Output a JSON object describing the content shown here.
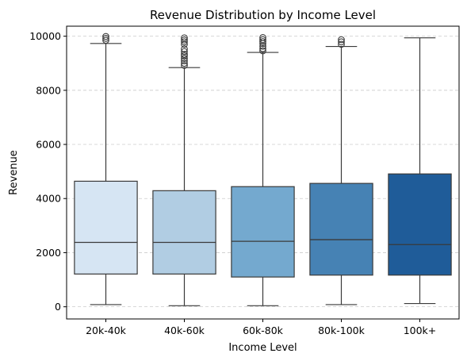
{
  "chart_data": {
    "type": "box",
    "title": "Revenue Distribution by Income Level",
    "xlabel": "Income Level",
    "ylabel": "Revenue",
    "ylim": [
      -450,
      10370
    ],
    "yticks": [
      0,
      2000,
      4000,
      6000,
      8000,
      10000
    ],
    "grid": "y-dashed",
    "legend": "none",
    "categories": [
      "20k-40k",
      "40k-60k",
      "60k-80k",
      "80k-100k",
      "100k+"
    ],
    "boxes": [
      {
        "category": "20k-40k",
        "whisker_low": 80,
        "q1": 1210,
        "median": 2380,
        "q3": 4640,
        "whisker_high": 9730,
        "outliers": [
          9850,
          9920,
          9990
        ],
        "color": "#d6e5f3"
      },
      {
        "category": "40k-60k",
        "whisker_low": 40,
        "q1": 1210,
        "median": 2380,
        "q3": 4290,
        "whisker_high": 8840,
        "outliers": [
          8920,
          9000,
          9090,
          9180,
          9270,
          9330,
          9430,
          9530,
          9700,
          9790,
          9860,
          9940
        ],
        "color": "#b1cde3"
      },
      {
        "category": "60k-80k",
        "whisker_low": 40,
        "q1": 1100,
        "median": 2420,
        "q3": 4440,
        "whisker_high": 9400,
        "outliers": [
          9460,
          9540,
          9630,
          9730,
          9800,
          9870,
          9950
        ],
        "color": "#74a9cf"
      },
      {
        "category": "80k-100k",
        "whisker_low": 80,
        "q1": 1170,
        "median": 2480,
        "q3": 4560,
        "whisker_high": 9620,
        "outliers": [
          9700,
          9790,
          9870
        ],
        "color": "#4682b4"
      },
      {
        "category": "100k+",
        "whisker_low": 120,
        "q1": 1170,
        "median": 2300,
        "q3": 4910,
        "whisker_high": 9940,
        "outliers": [],
        "color": "#1f5c99"
      }
    ],
    "colors": {
      "box_edge": "#3a3a3a",
      "grid": "#cccccc"
    }
  }
}
